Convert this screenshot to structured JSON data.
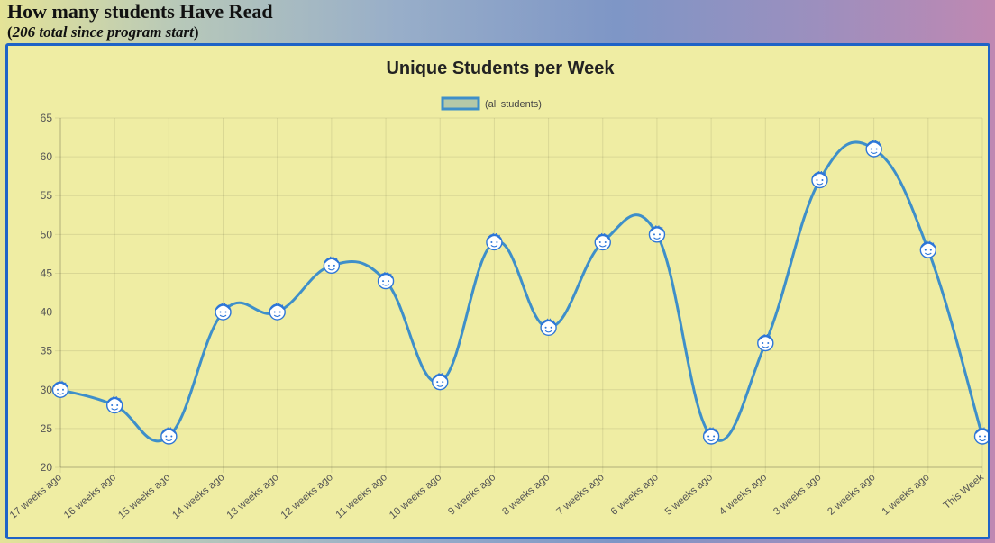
{
  "header": {
    "title": "How many students Have Read",
    "subtitle_open": "(",
    "subtitle_italic": "206 total since program start",
    "subtitle_close": ")"
  },
  "chart_data": {
    "type": "line",
    "title": "Unique Students per Week",
    "xlabel": "",
    "ylabel": "",
    "categories": [
      "17 weeks ago",
      "16 weeks ago",
      "15 weeks ago",
      "14 weeks ago",
      "13 weeks ago",
      "12 weeks ago",
      "11 weeks ago",
      "10 weeks ago",
      "9 weeks ago",
      "8 weeks ago",
      "7 weeks ago",
      "6 weeks ago",
      "5 weeks ago",
      "4 weeks ago",
      "3 weeks ago",
      "2 weeks ago",
      "1 weeks ago",
      "This Week"
    ],
    "series": [
      {
        "name": "(all students)",
        "values": [
          30,
          28,
          24,
          40,
          40,
          46,
          44,
          31,
          49,
          38,
          49,
          50,
          24,
          36,
          57,
          61,
          48,
          24
        ]
      }
    ],
    "ylim": [
      20,
      65
    ],
    "yticks": [
      20,
      25,
      30,
      35,
      40,
      45,
      50,
      55,
      60,
      65
    ],
    "grid": true,
    "legend_position": "top",
    "line_color": "#3e8fc9",
    "marker": "smiley-face-icon"
  }
}
